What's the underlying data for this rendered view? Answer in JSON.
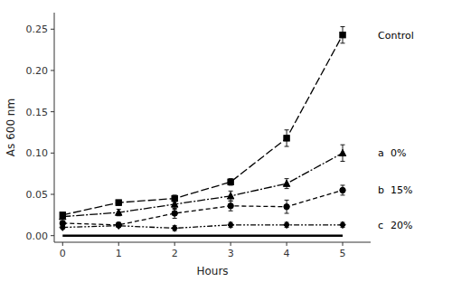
{
  "chart_data": {
    "type": "line",
    "xlabel": "Hours",
    "ylabel": "As 600 nm",
    "color": "#000000",
    "grid": false,
    "x": [
      0,
      1,
      2,
      3,
      4,
      5
    ],
    "xlim": [
      -0.15,
      5.5
    ],
    "xticks": [
      0,
      1,
      2,
      3,
      4,
      5
    ],
    "ylim": [
      -0.008,
      0.27
    ],
    "yticks": [
      {
        "value": 0.0,
        "label": "0.00"
      },
      0.05,
      {
        "value": 0.1,
        "label": "0.10"
      },
      0.15,
      {
        "value": 0.2,
        "label": "0.20"
      },
      0.25
    ],
    "series": [
      {
        "name": "Control",
        "values": [
          0.025,
          0.04,
          0.045,
          0.065,
          0.118,
          0.243
        ],
        "errors": [
          0.002,
          0.003,
          0.004,
          0.004,
          0.01,
          0.01
        ],
        "marker": "square",
        "line_style": "longdash"
      },
      {
        "name": "0%",
        "annotation": "a",
        "values": [
          0.023,
          0.028,
          0.038,
          0.048,
          0.063,
          0.1
        ],
        "errors": [
          0.002,
          0.004,
          0.006,
          0.006,
          0.006,
          0.01
        ],
        "marker": "triangle",
        "line_style": "dashdot"
      },
      {
        "name": "15%",
        "annotation": "b",
        "values": [
          0.015,
          0.013,
          0.027,
          0.036,
          0.035,
          0.055
        ],
        "errors": [
          0.002,
          0.003,
          0.006,
          0.006,
          0.008,
          0.006
        ],
        "marker": "circle",
        "line_style": "dashed"
      },
      {
        "name": "20%",
        "annotation": "c",
        "values": [
          0.01,
          0.012,
          0.009,
          0.013,
          0.013,
          0.013
        ],
        "errors": [
          0.002,
          0.002,
          0.003,
          0.003,
          0.003,
          0.003
        ],
        "marker": "diamond",
        "line_style": "dashdotdot"
      },
      {
        "values": [
          0.0,
          0.0,
          0.0,
          0.0,
          0.0,
          0.0
        ],
        "line_style": "solid"
      }
    ]
  }
}
